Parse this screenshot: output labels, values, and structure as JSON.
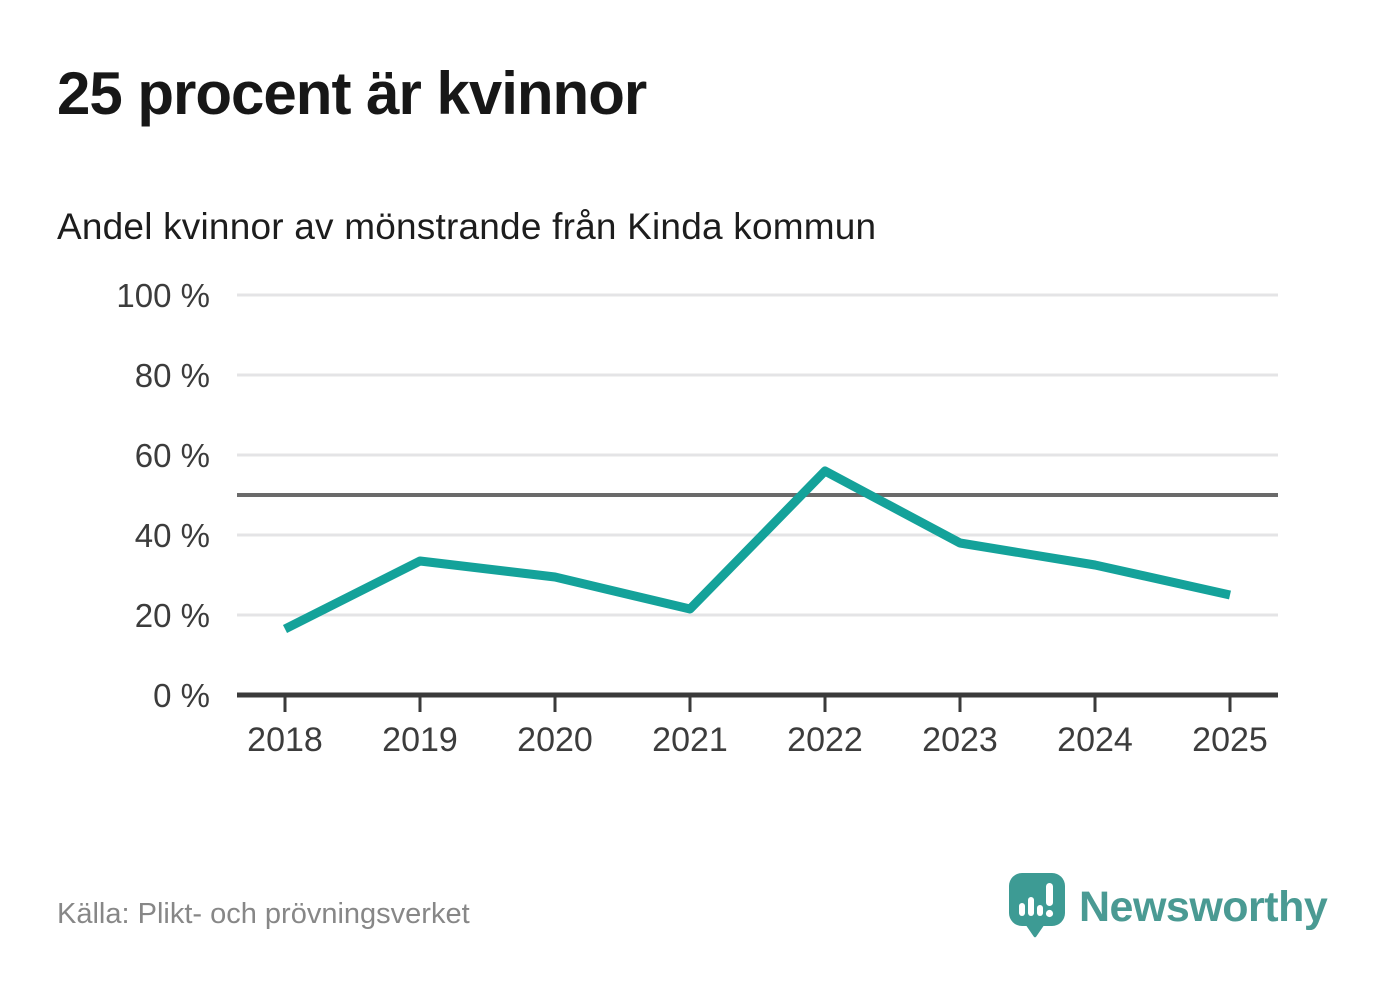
{
  "source": "Källa: Plikt- och prövningsverket",
  "brand": {
    "name": "Newsworthy"
  },
  "colors": {
    "line": "#14a29a",
    "grid": "#e4e4e6",
    "reference_line": "#6a6a6a",
    "axis": "#3a3a3a",
    "tick_label": "#3c3c3c",
    "title": "#171717",
    "subtitle": "#1d1d1d",
    "source_text": "#878787",
    "logo_bubble": "#3d9b94",
    "logo_text": "#4a9a93"
  },
  "chart_data": {
    "type": "line",
    "title": "25 procent är kvinnor",
    "subtitle": "Andel kvinnor av mönstrande från Kinda kommun",
    "x": [
      "2018",
      "2019",
      "2020",
      "2021",
      "2022",
      "2023",
      "2024",
      "2025"
    ],
    "series": [
      {
        "name": "Andel kvinnor av mönstrande",
        "values": [
          16.5,
          33.5,
          29.5,
          21.5,
          56,
          38,
          32.5,
          25
        ]
      }
    ],
    "xlabel": "",
    "ylabel": "",
    "ylim": [
      0,
      100
    ],
    "yticks": [
      0,
      20,
      40,
      60,
      80,
      100
    ],
    "ytick_labels": [
      "0 %",
      "20 %",
      "40 %",
      "60 %",
      "80 %",
      "100 %"
    ],
    "reference_line": 50,
    "unit": "%",
    "grid": "horizontal",
    "legend": "none"
  }
}
